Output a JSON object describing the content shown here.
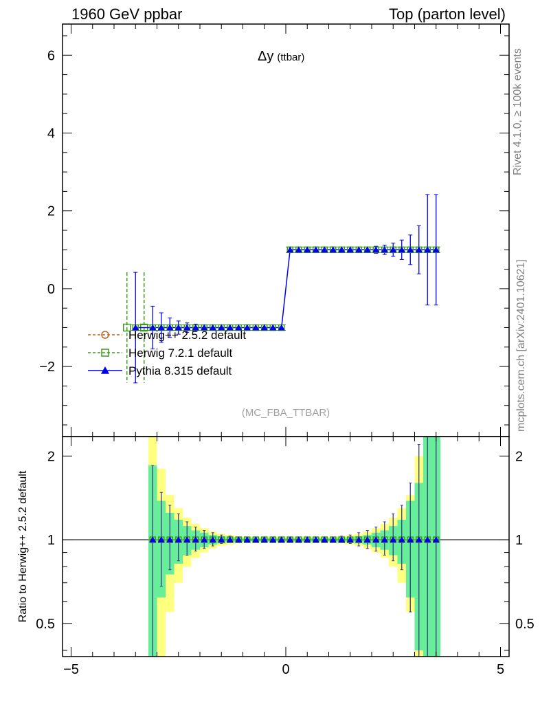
{
  "header": {
    "left": "1960 GeV ppbar",
    "right": "Top (parton level)"
  },
  "side_labels": {
    "rivet": "Rivet 4.1.0, ≥ 100k events",
    "mcplots": "mcplots.cern.ch [arXiv:2401.10621]"
  },
  "colors": {
    "herwigpp": "#b8652a",
    "herwig7": "#3c9a1e",
    "pythia": "#0000ee",
    "band_outer": "#ffff80",
    "band_inner": "#66ee99",
    "stat_err": "#3a3a8a"
  },
  "chart_data": [
    {
      "type": "line",
      "panel": "main",
      "title": "Δy",
      "title_suffix": "(ttbar)",
      "analysis_label": "(MC_FBA_TTBAR)",
      "xlim": [
        -5.2,
        5.2
      ],
      "ylim": [
        -3.8,
        6.8
      ],
      "yticks": [
        -2,
        0,
        2,
        4,
        6
      ],
      "ytick_labels": [
        "−2",
        "0",
        "2",
        "4",
        "6"
      ],
      "legend_position": "lower-left",
      "legend": [
        "Herwig++ 2.5.2 default",
        "Herwig 7.2.1 default",
        "Pythia 8.315 default"
      ],
      "bin_edges": [
        -3.6,
        -3.4,
        -3.2,
        -3.0,
        -2.8,
        -2.6,
        -2.4,
        -2.2,
        -2.0,
        -1.8,
        -1.6,
        -1.4,
        -1.2,
        -1.0,
        -0.8,
        -0.6,
        -0.4,
        -0.2,
        0.0,
        0.2,
        0.4,
        0.6,
        0.8,
        1.0,
        1.2,
        1.4,
        1.6,
        1.8,
        2.0,
        2.2,
        2.4,
        2.6,
        2.8,
        3.0,
        3.2,
        3.4,
        3.6
      ],
      "series": [
        {
          "name": "Herwig 7.2.1 default",
          "marker": "open-square",
          "style": "dashed",
          "x": [
            -3.7,
            -3.3
          ],
          "y": [
            -1,
            -1
          ],
          "err_up": [
            1.42,
            1.42
          ],
          "err_down": [
            1.42,
            1.42
          ]
        },
        {
          "name": "Pythia 8.315 default",
          "marker": "filled-triangle",
          "style": "solid",
          "x": [
            -3.5,
            -3.1,
            -2.9,
            -2.7,
            -2.5,
            -2.3,
            -2.1,
            -1.9,
            -1.7,
            -1.5,
            -1.3,
            -1.1,
            -0.9,
            -0.7,
            -0.5,
            -0.3,
            -0.1,
            0.1,
            0.3,
            0.5,
            0.7,
            0.9,
            1.1,
            1.3,
            1.5,
            1.7,
            1.9,
            2.1,
            2.3,
            2.5,
            2.7,
            2.9,
            3.1,
            3.3,
            3.5
          ],
          "y": [
            -1,
            -1,
            -1,
            -1,
            -1,
            -1,
            -1,
            -1,
            -1,
            -1,
            -1,
            -1,
            -1,
            -1,
            -1,
            -1,
            -1,
            1,
            1,
            1,
            1,
            1,
            1,
            1,
            1,
            1,
            1,
            1,
            1,
            1,
            1,
            1,
            1,
            1,
            1
          ],
          "err": [
            1.42,
            0.55,
            0.38,
            0.25,
            0.17,
            0.12,
            0.09,
            0.07,
            0.05,
            0.04,
            0.03,
            0.02,
            0.02,
            0.02,
            0.02,
            0.02,
            0.02,
            0.02,
            0.02,
            0.02,
            0.02,
            0.02,
            0.02,
            0.03,
            0.04,
            0.05,
            0.07,
            0.09,
            0.12,
            0.17,
            0.25,
            0.38,
            0.62,
            1.42,
            1.42
          ]
        }
      ]
    },
    {
      "type": "line",
      "panel": "ratio",
      "ylabel": "Ratio to Herwig++ 2.5.2 default",
      "xlim": [
        -5.2,
        5.2
      ],
      "ylim_log": [
        0.38,
        2.35
      ],
      "yticks": [
        0.5,
        1,
        2
      ],
      "ytick_labels": [
        "0.5",
        "1",
        "2"
      ],
      "xticks": [
        -5,
        0,
        5
      ],
      "xtick_labels": [
        "−5",
        "0",
        "5"
      ],
      "reference": 1,
      "bin_edges": [
        -3.2,
        -3.0,
        -2.8,
        -2.6,
        -2.4,
        -2.2,
        -2.0,
        -1.8,
        -1.6,
        -1.4,
        -1.2,
        -1.0,
        -0.8,
        -0.6,
        -0.4,
        -0.2,
        0.0,
        0.2,
        0.4,
        0.6,
        0.8,
        1.0,
        1.2,
        1.4,
        1.6,
        1.8,
        2.0,
        2.2,
        2.4,
        2.6,
        2.8,
        3.0,
        3.2,
        3.4,
        3.6
      ],
      "band_inner": [
        0.85,
        0.38,
        0.25,
        0.18,
        0.12,
        0.08,
        0.06,
        0.04,
        0.03,
        0.02,
        0.02,
        0.015,
        0.015,
        0.015,
        0.015,
        0.015,
        0.015,
        0.015,
        0.015,
        0.015,
        0.015,
        0.015,
        0.02,
        0.02,
        0.03,
        0.04,
        0.06,
        0.08,
        0.12,
        0.18,
        0.38,
        0.6,
        1.35,
        1.35
      ],
      "band_outer": [
        1.9,
        0.8,
        0.45,
        0.3,
        0.2,
        0.14,
        0.1,
        0.07,
        0.05,
        0.04,
        0.03,
        0.025,
        0.025,
        0.025,
        0.025,
        0.025,
        0.025,
        0.025,
        0.025,
        0.025,
        0.025,
        0.025,
        0.03,
        0.04,
        0.05,
        0.07,
        0.1,
        0.14,
        0.2,
        0.3,
        0.45,
        1.0,
        1.9,
        1.9
      ],
      "series": [
        {
          "name": "Herwig 7.2.1 default",
          "marker": "open-square",
          "x": [
            -3.1,
            -2.9,
            -2.7,
            -2.5,
            -2.3,
            -2.1,
            -1.9,
            -1.7,
            -1.5,
            -1.3,
            -1.1,
            -0.9,
            -0.7,
            -0.5,
            -0.3,
            -0.1,
            0.1,
            0.3,
            0.5,
            0.7,
            0.9,
            1.1,
            1.3,
            1.5,
            1.7,
            1.9,
            2.1,
            2.3,
            2.5,
            2.7,
            2.9,
            3.1,
            3.3,
            3.5
          ],
          "y": [
            1,
            1,
            1,
            1,
            1,
            1,
            1,
            1,
            1,
            1,
            1,
            1,
            1,
            1,
            1,
            1,
            1,
            1,
            1,
            1,
            1,
            1,
            1,
            1,
            1,
            1,
            1,
            1,
            1,
            1,
            1,
            1,
            1,
            1
          ]
        },
        {
          "name": "Pythia 8.315 default",
          "marker": "filled-triangle",
          "x": [
            -3.1,
            -2.9,
            -2.7,
            -2.5,
            -2.3,
            -2.1,
            -1.9,
            -1.7,
            -1.5,
            -1.3,
            -1.1,
            -0.9,
            -0.7,
            -0.5,
            -0.3,
            -0.1,
            0.1,
            0.3,
            0.5,
            0.7,
            0.9,
            1.1,
            1.3,
            1.5,
            1.7,
            1.9,
            2.1,
            2.3,
            2.5,
            2.7,
            2.9,
            3.1,
            3.3,
            3.5
          ],
          "y": [
            1,
            1,
            1,
            1,
            1,
            1,
            1,
            1,
            1,
            1,
            1,
            1,
            1,
            1,
            1,
            1,
            1,
            1,
            1,
            1,
            1,
            1,
            1,
            1,
            1,
            1,
            1,
            1,
            1,
            1,
            1,
            1,
            1,
            1
          ],
          "err_up": [
            0.85,
            0.48,
            0.33,
            0.24,
            0.16,
            0.11,
            0.08,
            0.06,
            0.04,
            0.03,
            0.02,
            0.02,
            0.02,
            0.02,
            0.02,
            0.02,
            0.02,
            0.02,
            0.02,
            0.02,
            0.02,
            0.02,
            0.03,
            0.04,
            0.06,
            0.08,
            0.11,
            0.16,
            0.24,
            0.33,
            0.6,
            1.2,
            1.4,
            1.4
          ],
          "err_down": [
            0.65,
            0.32,
            0.22,
            0.16,
            0.12,
            0.09,
            0.07,
            0.05,
            0.03,
            0.02,
            0.02,
            0.02,
            0.02,
            0.02,
            0.02,
            0.02,
            0.02,
            0.02,
            0.02,
            0.02,
            0.02,
            0.02,
            0.02,
            0.03,
            0.05,
            0.07,
            0.09,
            0.12,
            0.16,
            0.22,
            0.45,
            0.62,
            0.65,
            0.65
          ]
        }
      ]
    }
  ]
}
